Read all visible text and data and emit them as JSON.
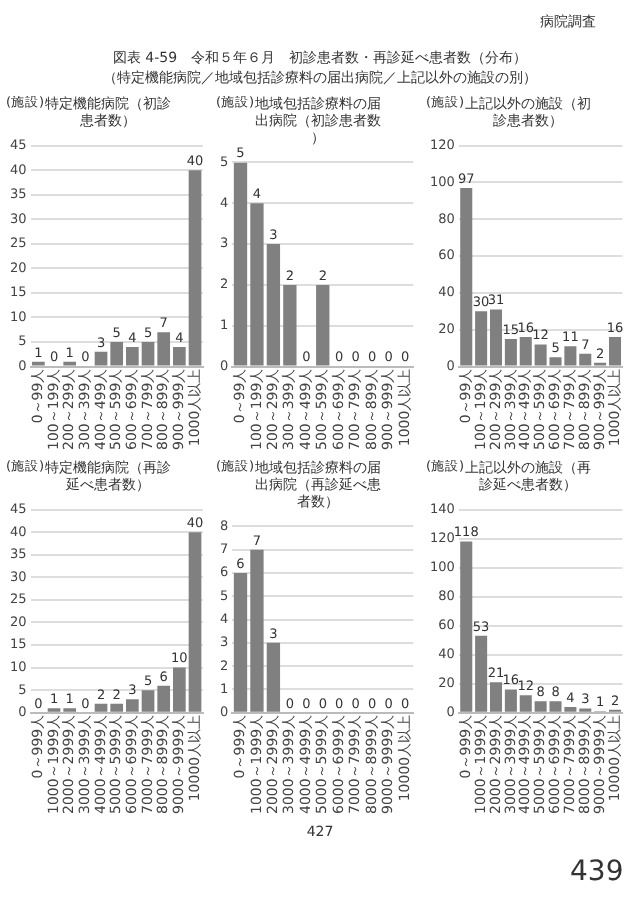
{
  "chart_data": [
    {
      "type": "bar",
      "title": "特定機能病院（初診患者数）",
      "ylabel": "(施設)",
      "categories": [
        "0～99人",
        "100～199人",
        "200～299人",
        "300～399人",
        "400～499人",
        "500～599人",
        "600～699人",
        "700～799人",
        "800～899人",
        "900～999人",
        "1000人以上"
      ],
      "values": [
        1,
        0,
        1,
        0,
        3,
        5,
        4,
        5,
        7,
        4,
        40
      ],
      "color": "#808080",
      "ylim": [
        0,
        45
      ],
      "yticks": [
        0,
        5,
        10,
        15,
        20,
        25,
        30,
        35,
        40,
        45
      ],
      "grid": "y",
      "data_labels": true,
      "annotations": [
        "病院調査",
        "図表 4-59　令和５年６月　初診患者数・再診延べ患者数（分布）",
        "（特定機能病院／地域包括診療料の届出病院／上記以外の施設の別）",
        "427",
        "439"
      ]
    },
    {
      "type": "bar",
      "title": "地域包括診療料の届出病院（初診患者数）",
      "ylabel": "(施設)",
      "categories": [
        "0～99人",
        "100～199人",
        "200～299人",
        "300～399人",
        "400～499人",
        "500～599人",
        "600～699人",
        "700～799人",
        "800～899人",
        "900～999人",
        "1000人以上"
      ],
      "values": [
        5,
        4,
        3,
        2,
        0,
        2,
        0,
        0,
        0,
        0,
        0
      ],
      "color": "#808080",
      "ylim": [
        0,
        5
      ],
      "yticks": [
        0,
        1,
        2,
        3,
        4,
        5
      ],
      "grid": "y",
      "data_labels": true
    },
    {
      "type": "bar",
      "title": "上記以外の施設（初診患者数）",
      "ylabel": "(施設)",
      "categories": [
        "0～99人",
        "100～199人",
        "200～299人",
        "300～399人",
        "400～499人",
        "500～599人",
        "600～699人",
        "700～799人",
        "800～899人",
        "900～999人",
        "1000人以上"
      ],
      "values": [
        97,
        30,
        31,
        15,
        16,
        12,
        5,
        11,
        7,
        2,
        16
      ],
      "color": "#808080",
      "ylim": [
        0,
        120
      ],
      "yticks": [
        0,
        20,
        40,
        60,
        80,
        100,
        120
      ],
      "grid": "y",
      "data_labels": true
    },
    {
      "type": "bar",
      "title": "特定機能病院（再診延べ患者数）",
      "ylabel": "(施設)",
      "categories": [
        "0～999人",
        "1000～1999人",
        "2000～2999人",
        "3000～3999人",
        "4000～4999人",
        "5000～5999人",
        "6000～6999人",
        "7000～7999人",
        "8000～8999人",
        "9000～9999人",
        "10000人以上"
      ],
      "values": [
        0,
        1,
        1,
        0,
        2,
        2,
        3,
        5,
        6,
        10,
        40
      ],
      "color": "#808080",
      "ylim": [
        0,
        45
      ],
      "yticks": [
        0,
        5,
        10,
        15,
        20,
        25,
        30,
        35,
        40,
        45
      ],
      "grid": "y",
      "data_labels": true
    },
    {
      "type": "bar",
      "title": "地域包括診療料の届出病院（再診延べ患者数）",
      "ylabel": "(施設)",
      "categories": [
        "0～999人",
        "1000～1999人",
        "2000～2999人",
        "3000～3999人",
        "4000～4999人",
        "5000～5999人",
        "6000～6999人",
        "7000～7999人",
        "8000～8999人",
        "9000～9999人",
        "10000人以上"
      ],
      "values": [
        6,
        7,
        3,
        0,
        0,
        0,
        0,
        0,
        0,
        0,
        0
      ],
      "color": "#808080",
      "ylim": [
        0,
        8
      ],
      "yticks": [
        0,
        1,
        2,
        3,
        4,
        5,
        6,
        7,
        8
      ],
      "grid": "y",
      "data_labels": true
    },
    {
      "type": "bar",
      "title": "上記以外の施設（再診延べ患者数）",
      "ylabel": "(施設)",
      "categories": [
        "0～999人",
        "1000～1999人",
        "2000～2999人",
        "3000～3999人",
        "4000～4999人",
        "5000～5999人",
        "6000～6999人",
        "7000～7999人",
        "8000～8999人",
        "9000～9999人",
        "10000人以上"
      ],
      "values": [
        118,
        53,
        21,
        16,
        12,
        8,
        8,
        4,
        3,
        1,
        2
      ],
      "color": "#808080",
      "ylim": [
        0,
        140
      ],
      "yticks": [
        0,
        20,
        40,
        60,
        80,
        100,
        120,
        140
      ],
      "grid": "y",
      "data_labels": true
    }
  ]
}
